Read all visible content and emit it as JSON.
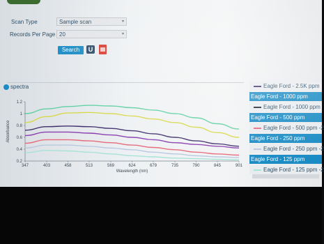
{
  "filters": {
    "scan_type_label": "Scan Type",
    "scan_type_value": "Sample scan",
    "records_label": "Records Per Page",
    "records_value": "20",
    "search_label": "Search",
    "u_icon_glyph": "U"
  },
  "panel": {
    "title": "spectra"
  },
  "chart_data": {
    "type": "line",
    "title": "",
    "xlabel": "Wavelength (nm)",
    "ylabel": "Absorbance",
    "xlim": [
      347,
      901
    ],
    "ylim": [
      0.2,
      1.2
    ],
    "x_ticks": [
      "347",
      "403",
      "458",
      "513",
      "569",
      "624",
      "679",
      "735",
      "790",
      "845",
      "901"
    ],
    "y_ticks": [
      "0.2",
      "0.4",
      "0.6",
      "0.8",
      "1",
      "1.2"
    ],
    "x": [
      347,
      403,
      458,
      513,
      569,
      624,
      679,
      735,
      790,
      845,
      901
    ],
    "series": [
      {
        "color": "#5fd0a2",
        "values": [
          1.0,
          1.08,
          1.12,
          1.14,
          1.13,
          1.1,
          1.06,
          1.0,
          0.93,
          0.83,
          0.74
        ]
      },
      {
        "color": "#d8d84a",
        "values": [
          0.85,
          0.95,
          1.01,
          1.02,
          1.0,
          0.96,
          0.91,
          0.85,
          0.77,
          0.68,
          0.6
        ]
      },
      {
        "color": "#3f2f6b",
        "values": [
          0.72,
          0.78,
          0.79,
          0.78,
          0.75,
          0.71,
          0.66,
          0.6,
          0.54,
          0.49,
          0.45
        ]
      },
      {
        "color": "#8a3fb0",
        "values": [
          0.63,
          0.69,
          0.69,
          0.67,
          0.64,
          0.6,
          0.56,
          0.51,
          0.48,
          0.45,
          0.42
        ]
      },
      {
        "color": "#e56b7c",
        "values": [
          0.5,
          0.56,
          0.56,
          0.54,
          0.51,
          0.47,
          0.43,
          0.39,
          0.35,
          0.32,
          0.3
        ]
      },
      {
        "color": "#b7c9e0",
        "values": [
          0.42,
          0.47,
          0.47,
          0.45,
          0.42,
          0.39,
          0.35,
          0.32,
          0.29,
          0.27,
          0.26
        ]
      },
      {
        "color": "#a7e3d6",
        "values": [
          0.34,
          0.38,
          0.37,
          0.35,
          0.32,
          0.29,
          0.27,
          0.25,
          0.24,
          0.23,
          0.22
        ]
      }
    ]
  },
  "legend": [
    {
      "label": "Eagle Ford - 2.5K ppm",
      "style": "plain",
      "color": "#3f2f6b"
    },
    {
      "label": "Eagle Ford - 1000 ppm",
      "style": "highlight"
    },
    {
      "label": "Eagle Ford - 1000 ppm",
      "style": "plain",
      "color": "#1c2430"
    },
    {
      "label": "Eagle Ford - 500 ppm",
      "style": "highlight"
    },
    {
      "label": "Eagle Ford - 500 ppm -2",
      "style": "plain",
      "color": "#e56b7c"
    },
    {
      "label": "Eagle Ford - 250 ppm",
      "style": "highlight"
    },
    {
      "label": "Eagle Ford - 250 ppm -2",
      "style": "plain",
      "color": "#b7c9e0"
    },
    {
      "label": "Eagle Ford - 125 ppm",
      "style": "highlight"
    },
    {
      "label": "Eagle Ford - 125 ppm -2",
      "style": "plain",
      "color": "#a7e3d6"
    }
  ]
}
